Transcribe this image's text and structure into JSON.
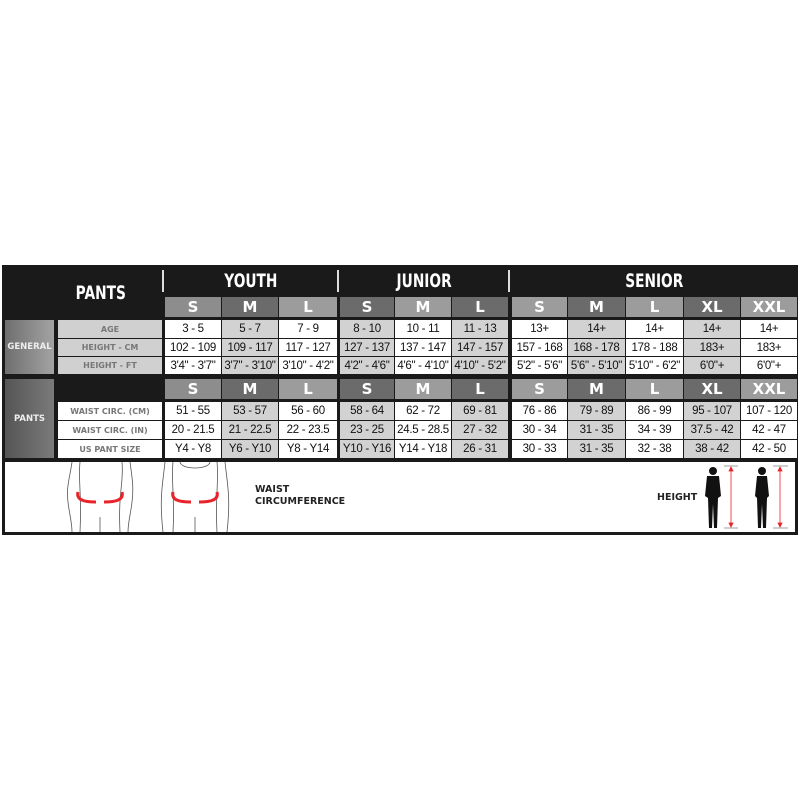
{
  "title": "PANTS",
  "groups": [
    {
      "label": "YOUTH",
      "sizes": [
        "S",
        "M",
        "L"
      ]
    },
    {
      "label": "JUNIOR",
      "sizes": [
        "S",
        "M",
        "L"
      ]
    },
    {
      "label": "SENIOR",
      "sizes": [
        "S",
        "M",
        "L",
        "XL",
        "XXL"
      ]
    }
  ],
  "sections": [
    {
      "label": "GENERAL",
      "rows": [
        {
          "label": "AGE",
          "values": [
            "3 - 5",
            "5 - 7",
            "7 - 9",
            "8 - 10",
            "10 - 11",
            "11 - 13",
            "13+",
            "14+",
            "14+",
            "14+",
            "14+"
          ]
        },
        {
          "label": "HEIGHT - CM",
          "values": [
            "102 - 109",
            "109 - 117",
            "117 - 127",
            "127 - 137",
            "137 - 147",
            "147 - 157",
            "157 - 168",
            "168 - 178",
            "178 - 188",
            "183+",
            "183+"
          ]
        },
        {
          "label": "HEIGHT - FT",
          "values": [
            "3'4\" - 3'7\"",
            "3'7\" - 3'10\"",
            "3'10\" - 4'2\"",
            "4'2\" - 4'6\"",
            "4'6\" - 4'10\"",
            "4'10\" - 5'2\"",
            "5'2\" - 5'6\"",
            "5'6\" - 5'10\"",
            "5'10\" - 6'2\"",
            "6'0\"+",
            "6'0\"+"
          ]
        }
      ]
    },
    {
      "label": "PANTS",
      "rows": [
        {
          "label": "WAIST CIRC. (CM)",
          "values": [
            "51 - 55",
            "53 - 57",
            "56 - 60",
            "58 - 64",
            "62 - 72",
            "69 - 81",
            "76 - 86",
            "79 - 89",
            "86 - 99",
            "95 - 107",
            "107 - 120"
          ]
        },
        {
          "label": "WAIST CIRC. (IN)",
          "values": [
            "20 - 21.5",
            "21 - 22.5",
            "22 - 23.5",
            "23 - 25",
            "24.5 - 28.5",
            "27 - 32",
            "30 - 34",
            "31 - 35",
            "34 - 39",
            "37.5 - 42",
            "42 - 47"
          ]
        },
        {
          "label": "US PANT SIZE",
          "values": [
            "Y4 - Y8",
            "Y6 - Y10",
            "Y8 - Y14",
            "Y10 - Y16",
            "Y14 - Y18",
            "26 - 31",
            "30 - 33",
            "31 - 35",
            "32 - 38",
            "38 - 42",
            "42 - 50"
          ]
        }
      ]
    }
  ],
  "figures": {
    "waist_label_1": "WAIST",
    "waist_label_2": "CIRCUMFERENCE",
    "height_label": "HEIGHT"
  },
  "colors": {
    "background": "#1a1a1a",
    "cell_light": "#ffffff",
    "cell_shaded": "#d2d2d2",
    "arrow": "#e8232a"
  }
}
